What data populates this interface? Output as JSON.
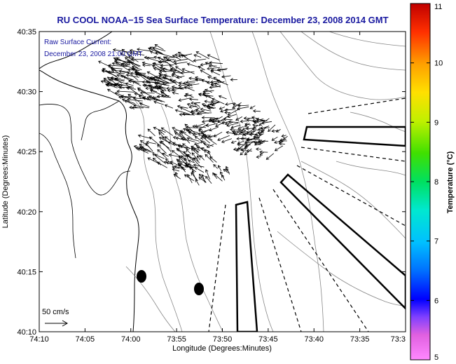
{
  "title": "RU COOL  NOAA−15  Sea Surface Temperature:  December 23, 2008 2014 GMT",
  "annotations": {
    "raw_current_label": "Raw Surface Current:",
    "raw_current_time": "December 23, 2008 21:00 GMT"
  },
  "scale_label": "50 cm/s",
  "axes": {
    "xlabel": "Longitude (Degrees:Minutes)",
    "ylabel": "Latitude (Degrees:Minutes)",
    "x_ticks": [
      "74:10",
      "74:05",
      "74:00",
      "73:55",
      "73:50",
      "73:45",
      "73:40",
      "73:35",
      "73:3"
    ],
    "y_ticks": [
      "40:35",
      "40:30",
      "40:25",
      "40:20",
      "40:15",
      "40:10"
    ]
  },
  "colorbar": {
    "label": "Temperature (°C)",
    "min": 5,
    "max": 11,
    "ticks": [
      "11",
      "10",
      "9",
      "8",
      "7",
      "6",
      "5"
    ]
  }
}
